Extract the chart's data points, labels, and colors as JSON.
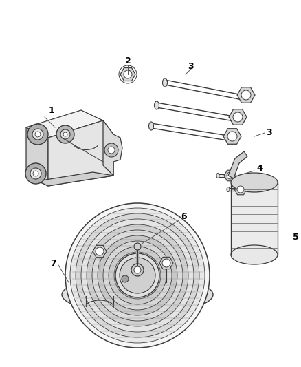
{
  "bg_color": "#ffffff",
  "line_color": "#3a3a3a",
  "fig_width": 4.38,
  "fig_height": 5.33,
  "dpi": 100,
  "label_fontsize": 9,
  "label_color": "#000000",
  "leader_color": "#555555",
  "part_fill_light": "#f2f2f2",
  "part_fill_mid": "#e0e0e0",
  "part_fill_dark": "#c8c8c8",
  "part_fill_darker": "#b8b8b8"
}
